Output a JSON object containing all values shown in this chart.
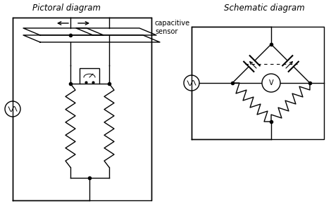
{
  "title_left": "Pictoral diagram",
  "title_right": "Schematic diagram",
  "bg_color": "#ffffff",
  "line_color": "#000000",
  "text_color": "#000000",
  "cap_sensor_label": "capacitive\nsensor",
  "fig_width": 4.7,
  "fig_height": 3.03,
  "dpi": 100,
  "lw": 1.0
}
